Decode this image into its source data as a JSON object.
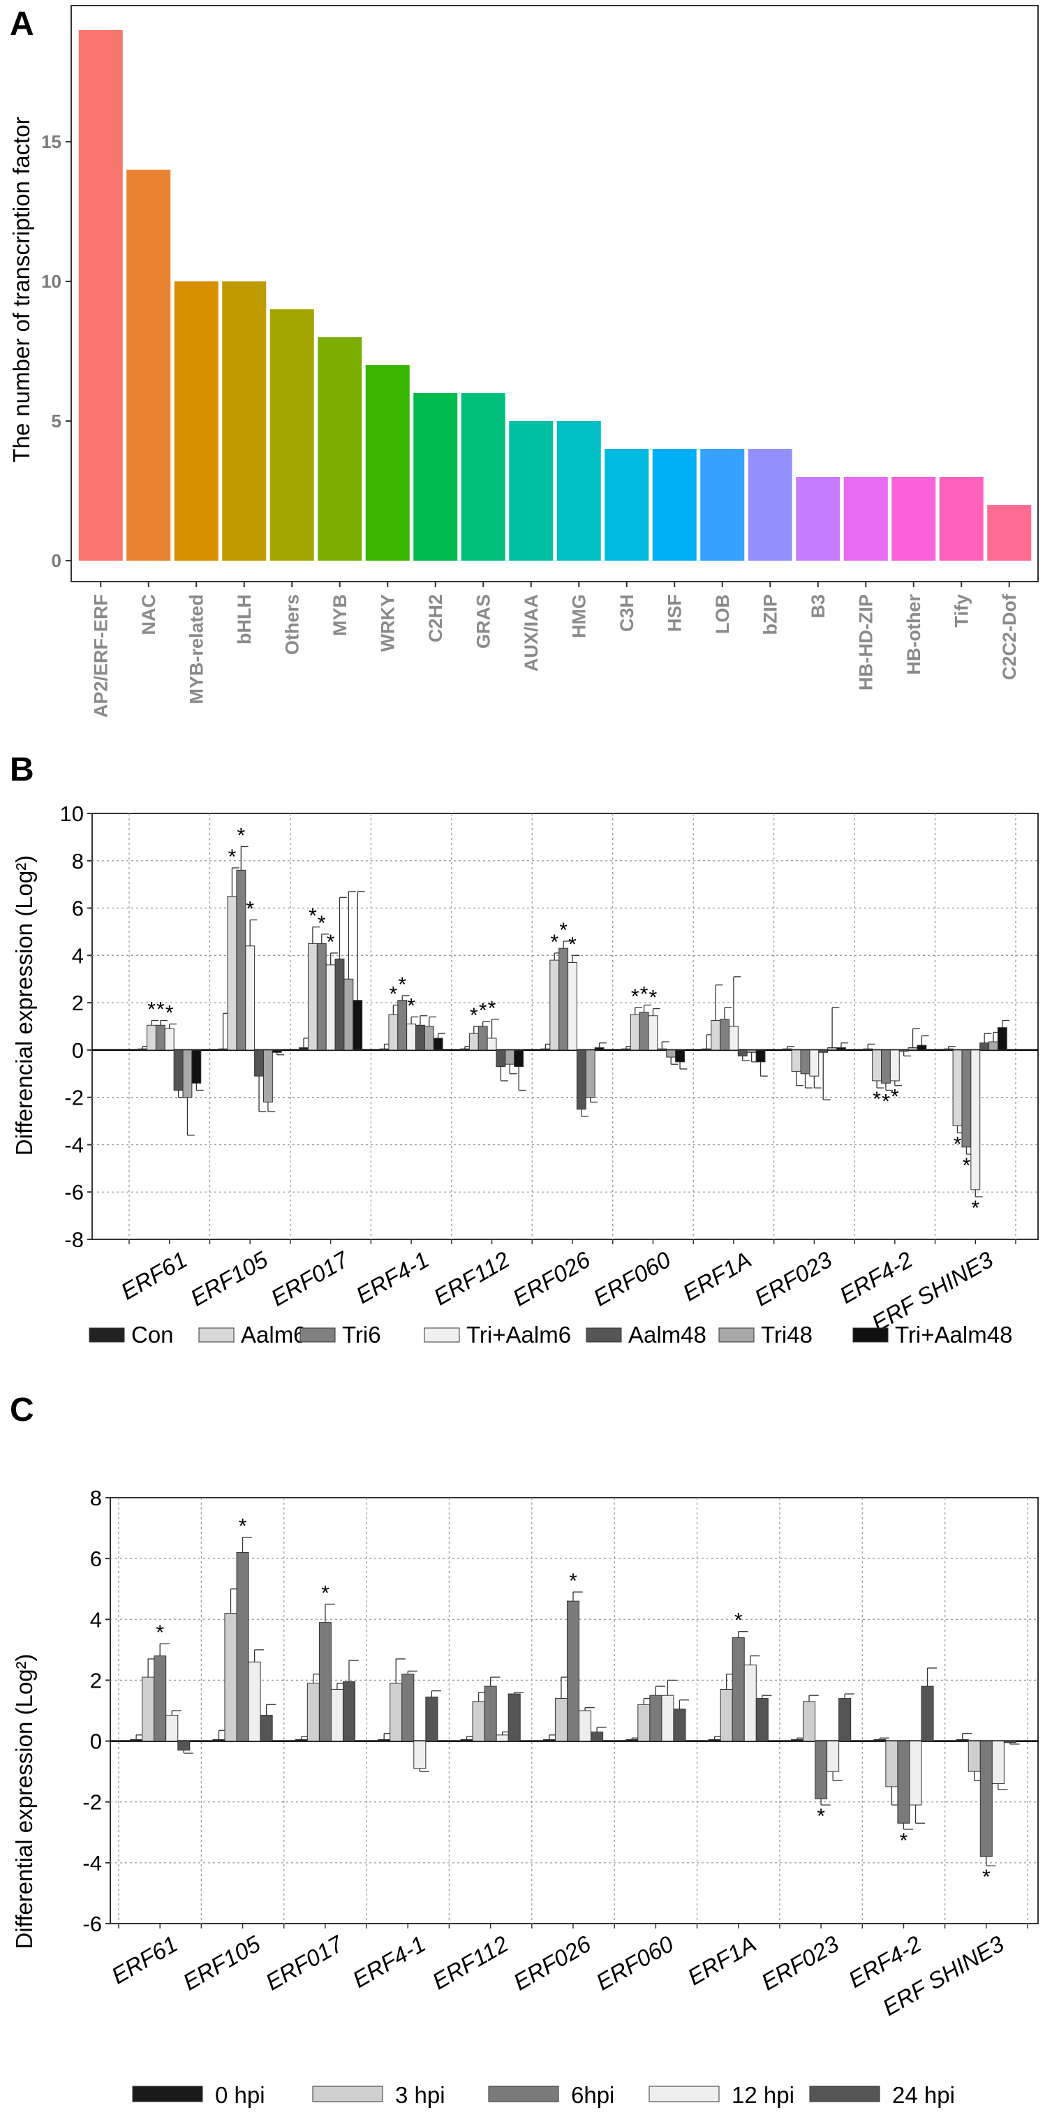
{
  "panels": {
    "a": "A",
    "b": "B",
    "c": "C"
  },
  "chart_data": [
    {
      "type": "bar",
      "ylabel": "The number of  transcription factor",
      "ylim": [
        0,
        19.5
      ],
      "yticks": [
        0,
        5,
        10,
        15
      ],
      "categories": [
        "AP2/ERF-ERF",
        "NAC",
        "MYB-related",
        "bHLH",
        "Others",
        "MYB",
        "WRKY",
        "C2H2",
        "GRAS",
        "AUX/IAA",
        "HMG",
        "C3H",
        "HSF",
        "LOB",
        "bZIP",
        "B3",
        "HB-HD-ZIP",
        "HB-other",
        "Tify",
        "C2C2-Dof"
      ],
      "values": [
        19,
        14,
        10,
        10,
        9,
        8,
        7,
        6,
        6,
        5,
        5,
        4,
        4,
        4,
        4,
        3,
        3,
        3,
        3,
        2
      ],
      "colors": [
        "#F8766D",
        "#EA8331",
        "#D89000",
        "#C09B00",
        "#A3A500",
        "#7CAE00",
        "#39B600",
        "#00BB4E",
        "#00BF7D",
        "#00C1A3",
        "#00BFC4",
        "#00BAE0",
        "#00B0F6",
        "#35A2FF",
        "#9590FF",
        "#C77CFF",
        "#E76BF3",
        "#FA62DB",
        "#FF62BC",
        "#FF6C91"
      ]
    },
    {
      "type": "bar",
      "ylabel": "Differencial expression (Log²)",
      "ylim": [
        -8,
        10
      ],
      "yticks": [
        -8,
        -6,
        -4,
        -2,
        0,
        2,
        4,
        6,
        8,
        10
      ],
      "categories": [
        "ERF61",
        "ERF105",
        "ERF017",
        "ERF4-1",
        "ERF112",
        "ERF026",
        "ERF060",
        "ERF1A",
        "ERF023",
        "ERF4-2",
        "ERF SHINE3"
      ],
      "legend": [
        "Con",
        "Aalm6",
        "Tri6",
        "Tri+Aalm6",
        "Aalm48",
        "Tri48",
        "Tri+Aalm48"
      ],
      "legend_colors": [
        "#222222",
        "#d8d8d8",
        "#808080",
        "#f0f0f0",
        "#555555",
        "#a8a8a8",
        "#111111"
      ],
      "series": [
        {
          "name": "Con",
          "values": [
            0.05,
            0.05,
            0.1,
            0.05,
            0.05,
            0.05,
            0.05,
            0.05,
            0.05,
            0.05,
            0.05
          ],
          "errors": [
            0.1,
            1.5,
            0.4,
            0.2,
            0.1,
            0.2,
            0.1,
            0.6,
            0.1,
            0.2,
            0.1
          ]
        },
        {
          "name": "Aalm6",
          "values": [
            1.05,
            6.5,
            4.5,
            1.5,
            0.7,
            3.8,
            1.5,
            1.25,
            -0.9,
            -1.3,
            -3.2
          ],
          "errors": [
            0.2,
            1.2,
            0.7,
            0.4,
            0.3,
            0.3,
            0.3,
            1.5,
            0.6,
            0.3,
            0.3
          ]
        },
        {
          "name": "Tri6",
          "values": [
            1.05,
            7.6,
            4.5,
            2.1,
            1.0,
            4.3,
            1.6,
            1.3,
            -1.0,
            -1.4,
            -4.1
          ],
          "errors": [
            0.2,
            1.0,
            0.4,
            0.2,
            0.2,
            0.3,
            0.3,
            0.5,
            0.6,
            0.3,
            0.3
          ]
        },
        {
          "name": "Tri+Aalm6",
          "values": [
            0.9,
            4.4,
            3.6,
            1.1,
            0.5,
            3.7,
            1.45,
            1.0,
            -1.1,
            -1.3,
            -5.9
          ],
          "errors": [
            0.2,
            1.1,
            0.5,
            0.3,
            0.8,
            0.3,
            0.3,
            2.1,
            0.5,
            0.2,
            0.3
          ]
        },
        {
          "name": "Aalm48",
          "values": [
            -1.7,
            -1.1,
            3.85,
            1.05,
            -0.7,
            -2.5,
            0.05,
            -0.25,
            -0.1,
            -0.05,
            0.3
          ],
          "errors": [
            0.3,
            1.5,
            2.6,
            0.4,
            0.6,
            0.3,
            0.3,
            0.2,
            2.0,
            0.2,
            0.4
          ]
        },
        {
          "name": "Tri48",
          "values": [
            -2.0,
            -2.2,
            3.0,
            1.0,
            -0.6,
            -2.0,
            -0.3,
            -0.1,
            0.1,
            0.1,
            0.35
          ],
          "errors": [
            1.6,
            0.4,
            3.7,
            0.4,
            0.4,
            0.2,
            0.3,
            0.4,
            1.7,
            0.8,
            0.4
          ]
        },
        {
          "name": "Tri+Aalm48",
          "values": [
            -1.4,
            -0.1,
            2.1,
            0.5,
            -0.7,
            0.1,
            -0.5,
            -0.5,
            0.1,
            0.2,
            0.95
          ],
          "errors": [
            0.3,
            0.1,
            4.6,
            0.2,
            1.0,
            0.2,
            0.3,
            0.6,
            0.2,
            0.4,
            0.3
          ]
        }
      ],
      "significance": [
        {
          "category": "ERF61",
          "series": [
            "Aalm6",
            "Tri6",
            "Tri+Aalm6"
          ]
        },
        {
          "category": "ERF105",
          "series": [
            "Aalm6",
            "Tri6",
            "Tri+Aalm6"
          ]
        },
        {
          "category": "ERF017",
          "series": [
            "Aalm6",
            "Tri6",
            "Tri+Aalm6"
          ]
        },
        {
          "category": "ERF4-1",
          "series": [
            "Aalm6",
            "Tri6",
            "Tri+Aalm6"
          ]
        },
        {
          "category": "ERF112",
          "series": [
            "Aalm6",
            "Tri6",
            "Tri+Aalm6"
          ]
        },
        {
          "category": "ERF026",
          "series": [
            "Aalm6",
            "Tri6",
            "Tri+Aalm6"
          ]
        },
        {
          "category": "ERF060",
          "series": [
            "Aalm6",
            "Tri6",
            "Tri+Aalm6"
          ]
        },
        {
          "category": "ERF4-2",
          "series": [
            "Aalm6",
            "Tri6",
            "Tri+Aalm6"
          ]
        },
        {
          "category": "ERF SHINE3",
          "series": [
            "Aalm6",
            "Tri6",
            "Tri+Aalm6"
          ]
        }
      ]
    },
    {
      "type": "bar",
      "ylabel": "Differential expression (Log²)",
      "ylim": [
        -6,
        8
      ],
      "yticks": [
        -6,
        -4,
        -2,
        0,
        2,
        4,
        6,
        8
      ],
      "categories": [
        "ERF61",
        "ERF105",
        "ERF017",
        "ERF4-1",
        "ERF112",
        "ERF026",
        "ERF060",
        "ERF1A",
        "ERF023",
        "ERF4-2",
        "ERF SHINE3"
      ],
      "legend": [
        "0 hpi",
        "3 hpi",
        "6hpi",
        "12 hpi",
        "24 hpi"
      ],
      "legend_colors": [
        "#1a1a1a",
        "#cfcfcf",
        "#7a7a7a",
        "#eeeeee",
        "#555555"
      ],
      "series": [
        {
          "name": "0 hpi",
          "values": [
            0.05,
            0.05,
            0.05,
            0.05,
            0.05,
            0.05,
            0.05,
            0.05,
            0.05,
            0.05,
            0.05
          ],
          "errors": [
            0.15,
            0.3,
            0.1,
            0.2,
            0.1,
            0.15,
            0.05,
            0.1,
            0.05,
            0.05,
            0.2
          ]
        },
        {
          "name": "3 hpi",
          "values": [
            2.1,
            4.2,
            1.9,
            1.9,
            1.3,
            1.4,
            1.2,
            1.7,
            1.3,
            -1.5,
            -1.0
          ],
          " errors": [
            0.6,
            0.8,
            0.3,
            0.8,
            0.3,
            0.7,
            0.2,
            0.5,
            0.2,
            0.6,
            0.3
          ]
        },
        {
          "name": "6hpi",
          "values": [
            2.8,
            6.2,
            3.9,
            2.2,
            1.8,
            4.6,
            1.5,
            3.4,
            -1.9,
            -2.7,
            -3.8
          ],
          "errors": [
            0.4,
            0.5,
            0.6,
            0.1,
            0.3,
            0.3,
            0.3,
            0.2,
            0.2,
            0.2,
            0.3
          ]
        },
        {
          "name": "12 hpi",
          "values": [
            0.85,
            2.6,
            1.7,
            -0.9,
            0.2,
            1.0,
            1.5,
            2.5,
            -1.0,
            -2.1,
            -1.4
          ],
          "errors": [
            0.15,
            0.4,
            0.2,
            0.1,
            0.1,
            0.1,
            0.5,
            0.3,
            0.3,
            0.6,
            0.2
          ]
        },
        {
          "name": "24 hpi",
          "values": [
            -0.3,
            0.85,
            1.95,
            1.45,
            1.55,
            0.3,
            1.05,
            1.4,
            1.4,
            1.8,
            -0.05
          ],
          "errors": [
            0.1,
            0.35,
            0.7,
            0.2,
            0.05,
            0.15,
            0.3,
            0.1,
            0.15,
            0.6,
            0.05
          ]
        }
      ],
      "significance": [
        {
          "category": "ERF61",
          "series": [
            "6hpi"
          ]
        },
        {
          "category": "ERF105",
          "series": [
            "6hpi"
          ]
        },
        {
          "category": "ERF017",
          "series": [
            "6hpi"
          ]
        },
        {
          "category": "ERF026",
          "series": [
            "6hpi"
          ]
        },
        {
          "category": "ERF1A",
          "series": [
            "6hpi"
          ]
        },
        {
          "category": "ERF023",
          "series": [
            "6hpi"
          ]
        },
        {
          "category": "ERF4-2",
          "series": [
            "6hpi"
          ]
        },
        {
          "category": "ERF SHINE3",
          "series": [
            "6hpi"
          ]
        }
      ]
    }
  ],
  "star_symbol": "*"
}
